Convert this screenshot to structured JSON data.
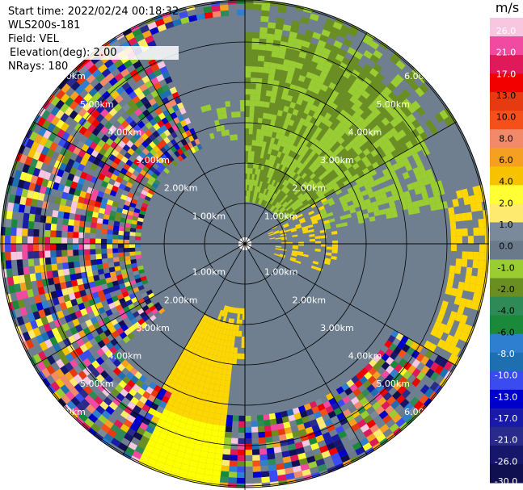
{
  "header": {
    "start_time": "Start time: 2022/02/24 00:18:32",
    "instrument": "WLS200s-181",
    "field": "Field: VEL",
    "elevation": "Elevation(deg): 2.00",
    "nrays": "NRays: 180"
  },
  "colorbar": {
    "unit": "m/s",
    "ticks": [
      "26.0",
      "21.0",
      "17.0",
      "13.0",
      "10.0",
      "8.0",
      "6.0",
      "4.0",
      "2.0",
      "1.0",
      "0.0",
      "-1.0",
      "-2.0",
      "-4.0",
      "-6.0",
      "-8.0",
      "-10.0",
      "-13.0",
      "-17.0",
      "-21.0",
      "-26.0",
      "-30.0"
    ],
    "colors": [
      "#f7c6e0",
      "#f24aa0",
      "#e01a5a",
      "#f20000",
      "#e83a10",
      "#f5501a",
      "#f28a6a",
      "#f5a020",
      "#f7c300",
      "#ffff33",
      "#ffea70",
      "#7a8a9a",
      "#6a7a8a",
      "#9acd32",
      "#6b8e23",
      "#2e8b57",
      "#1a8a3a",
      "#2f7fd0",
      "#1e6fb0",
      "#3a4cf0",
      "#0000cd",
      "#1a1aa8",
      "#2a2a8a",
      "#16166a",
      "#101050"
    ]
  },
  "range_rings": [
    "1.00km",
    "2.00km",
    "3.00km",
    "4.00km",
    "5.00km",
    "6.00km"
  ],
  "field_colors": {
    "background": "#6f7f8f",
    "grid": "#000000",
    "positive_light": "#9acd32",
    "positive_dark": "#6b8e23",
    "negative_light": "#ffd700",
    "negative_bright": "#ffff00"
  }
}
